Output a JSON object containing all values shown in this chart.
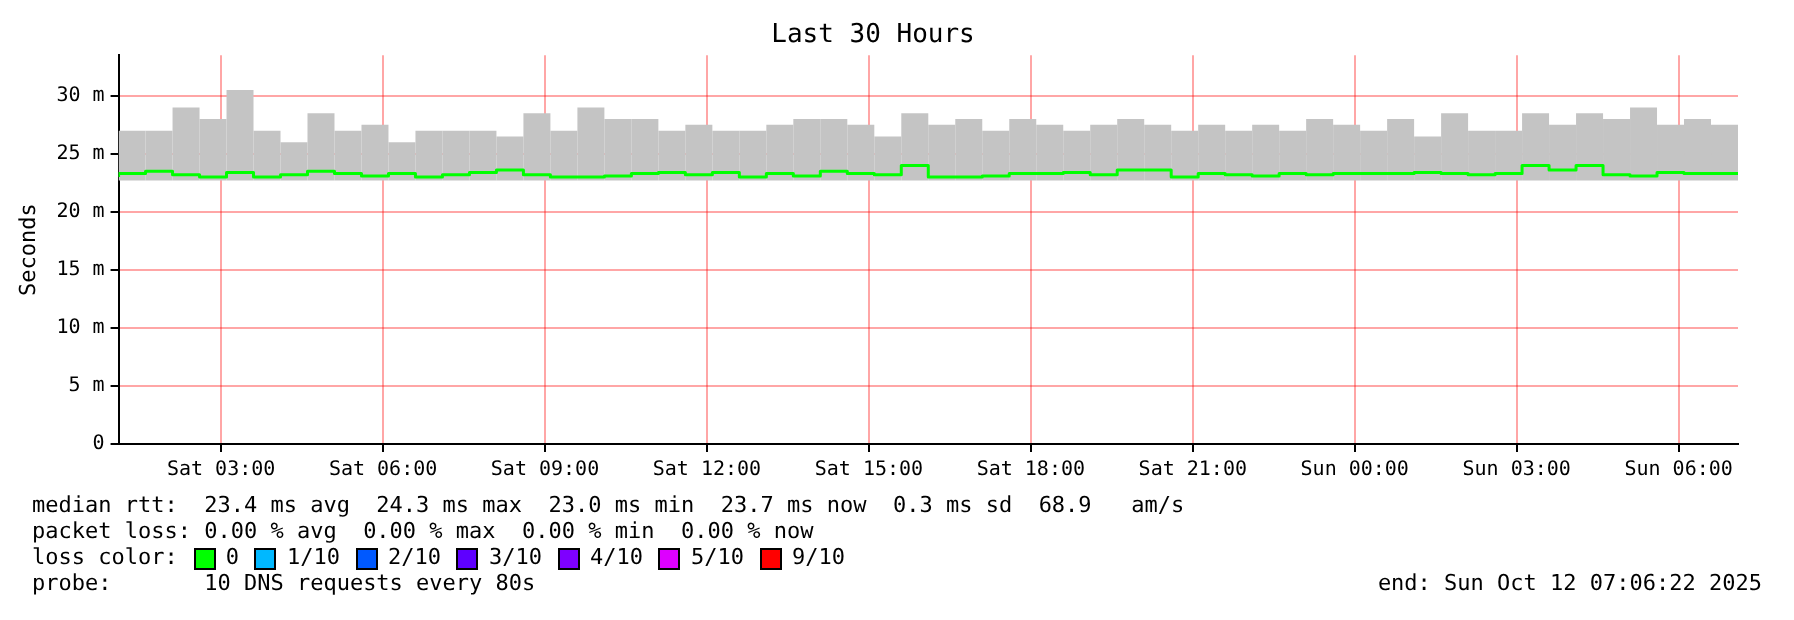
{
  "chart_data": {
    "type": "step",
    "title": "Last 30 Hours",
    "ylabel": "Seconds",
    "legend_title": "loss color:",
    "legend": "bottom",
    "grid": true,
    "marker": "none",
    "xlim": [
      "2025-10-11T01:06",
      "2025-10-12T07:06"
    ],
    "xticks": [
      {
        "value": "2025-10-11T03:00",
        "label": "Sat 03:00"
      },
      {
        "value": "2025-10-11T06:00",
        "label": "Sat 06:00"
      },
      {
        "value": "2025-10-11T09:00",
        "label": "Sat 09:00"
      },
      {
        "value": "2025-10-11T12:00",
        "label": "Sat 12:00"
      },
      {
        "value": "2025-10-11T15:00",
        "label": "Sat 15:00"
      },
      {
        "value": "2025-10-11T18:00",
        "label": "Sat 18:00"
      },
      {
        "value": "2025-10-11T21:00",
        "label": "Sat 21:00"
      },
      {
        "value": "2025-10-12T00:00",
        "label": "Sun 00:00"
      },
      {
        "value": "2025-10-12T03:00",
        "label": "Sun 03:00"
      },
      {
        "value": "2025-10-12T06:00",
        "label": "Sun 06:00"
      }
    ],
    "ylim": [
      0,
      33.5
    ],
    "yticks": [
      0,
      {
        "value": 5,
        "label": "5 m"
      },
      {
        "value": 10,
        "label": "10 m"
      },
      {
        "value": 15,
        "label": "15 m"
      },
      {
        "value": 20,
        "label": "20 m"
      },
      {
        "value": 25,
        "label": "25 m"
      },
      {
        "value": 30,
        "label": "30 m"
      }
    ],
    "x": [
      "2025-10-11T01:06",
      "2025-10-11T01:36",
      "2025-10-11T02:06",
      "2025-10-11T02:36",
      "2025-10-11T03:06",
      "2025-10-11T03:36",
      "2025-10-11T04:06",
      "2025-10-11T04:36",
      "2025-10-11T05:06",
      "2025-10-11T05:36",
      "2025-10-11T06:06",
      "2025-10-11T06:36",
      "2025-10-11T07:06",
      "2025-10-11T07:36",
      "2025-10-11T08:06",
      "2025-10-11T08:36",
      "2025-10-11T09:06",
      "2025-10-11T09:36",
      "2025-10-11T10:06",
      "2025-10-11T10:36",
      "2025-10-11T11:06",
      "2025-10-11T11:36",
      "2025-10-11T12:06",
      "2025-10-11T12:36",
      "2025-10-11T13:06",
      "2025-10-11T13:36",
      "2025-10-11T14:06",
      "2025-10-11T14:36",
      "2025-10-11T15:06",
      "2025-10-11T15:36",
      "2025-10-11T16:06",
      "2025-10-11T16:36",
      "2025-10-11T17:06",
      "2025-10-11T17:36",
      "2025-10-11T18:06",
      "2025-10-11T18:36",
      "2025-10-11T19:06",
      "2025-10-11T19:36",
      "2025-10-11T20:06",
      "2025-10-11T20:36",
      "2025-10-11T21:06",
      "2025-10-11T21:36",
      "2025-10-11T22:06",
      "2025-10-11T22:36",
      "2025-10-11T23:06",
      "2025-10-11T23:36",
      "2025-10-12T00:06",
      "2025-10-12T00:36",
      "2025-10-12T01:06",
      "2025-10-12T01:36",
      "2025-10-12T02:06",
      "2025-10-12T02:36",
      "2025-10-12T03:06",
      "2025-10-12T03:36",
      "2025-10-12T04:06",
      "2025-10-12T04:36",
      "2025-10-12T05:06",
      "2025-10-12T05:36",
      "2025-10-12T06:06",
      "2025-10-12T06:36",
      "2025-10-12T07:06"
    ],
    "series": [
      {
        "name": "0",
        "color": "#00ff00",
        "values": [
          23.0,
          23.3,
          23.5,
          23.2,
          23.0,
          23.4,
          23.0,
          23.2,
          23.5,
          23.3,
          23.1,
          23.3,
          23.0,
          23.2,
          23.4,
          23.6,
          23.2,
          23.0,
          23.0,
          23.1,
          23.3,
          23.4,
          23.2,
          23.4,
          23.0,
          23.3,
          23.1,
          23.5,
          23.3,
          23.2,
          24.0,
          23.0,
          23.0,
          23.1,
          23.3,
          23.3,
          23.4,
          23.2,
          23.6,
          23.6,
          23.0,
          23.3,
          23.2,
          23.1,
          23.3,
          23.2,
          23.3,
          23.3,
          23.3,
          23.4,
          23.3,
          23.2,
          23.3,
          24.0,
          23.6,
          24.0,
          23.2,
          23.1,
          23.4,
          23.3,
          23.3
        ],
        "lower": [
          22.7,
          22.7,
          22.7,
          22.7,
          22.7,
          22.7,
          22.7,
          22.7,
          22.7,
          22.7,
          22.7,
          22.7,
          22.7,
          22.7,
          22.7,
          22.7,
          22.7,
          22.7,
          22.7,
          22.7,
          22.7,
          22.7,
          22.7,
          22.7,
          22.7,
          22.7,
          22.7,
          22.7,
          22.7,
          22.7,
          22.7,
          22.7,
          22.7,
          22.7,
          22.7,
          22.7,
          22.7,
          22.7,
          22.7,
          22.7,
          22.7,
          22.7,
          22.7,
          22.7,
          22.7,
          22.7,
          22.7,
          22.7,
          22.7,
          22.7,
          22.7,
          22.7,
          22.7,
          22.7,
          22.7,
          22.7,
          22.7,
          22.7,
          22.7,
          22.7,
          22.7
        ],
        "upper": [
          27.0,
          27.0,
          29.0,
          28.0,
          30.5,
          27.0,
          26.0,
          28.5,
          27.0,
          27.5,
          26.0,
          27.0,
          27.0,
          27.0,
          26.5,
          28.5,
          27.0,
          29.0,
          28.0,
          28.0,
          27.0,
          27.5,
          27.0,
          27.0,
          27.5,
          28.0,
          28.0,
          27.5,
          26.5,
          28.5,
          27.5,
          28.0,
          27.0,
          28.0,
          27.5,
          27.0,
          27.5,
          28.0,
          27.5,
          27.0,
          27.5,
          27.0,
          27.5,
          27.0,
          28.0,
          27.5,
          27.0,
          28.0,
          26.5,
          28.5,
          27.0,
          27.0,
          28.5,
          27.5,
          28.5,
          28.0,
          29.0,
          27.5,
          28.0,
          27.5,
          27.5
        ]
      },
      {
        "name": "1/10",
        "color": "#00b8ff",
        "values": [
          null,
          null,
          null,
          null,
          null,
          null,
          null,
          null,
          null,
          null,
          null,
          null,
          null,
          null,
          null,
          null,
          null,
          null,
          null,
          null,
          null,
          null,
          null,
          null,
          null,
          null,
          null,
          null,
          null,
          null,
          null,
          null,
          null,
          null,
          null,
          null,
          null,
          null,
          null,
          null,
          null,
          null,
          null,
          null,
          null,
          null,
          null,
          null,
          null,
          null,
          null,
          null,
          null,
          null,
          null,
          null,
          null,
          null,
          null,
          null,
          null
        ]
      },
      {
        "name": "2/10",
        "color": "#0059ff",
        "values": [
          null,
          null,
          null,
          null,
          null,
          null,
          null,
          null,
          null,
          null,
          null,
          null,
          null,
          null,
          null,
          null,
          null,
          null,
          null,
          null,
          null,
          null,
          null,
          null,
          null,
          null,
          null,
          null,
          null,
          null,
          null,
          null,
          null,
          null,
          null,
          null,
          null,
          null,
          null,
          null,
          null,
          null,
          null,
          null,
          null,
          null,
          null,
          null,
          null,
          null,
          null,
          null,
          null,
          null,
          null,
          null,
          null,
          null,
          null,
          null,
          null
        ]
      },
      {
        "name": "3/10",
        "color": "#5e00ff",
        "values": [
          null,
          null,
          null,
          null,
          null,
          null,
          null,
          null,
          null,
          null,
          null,
          null,
          null,
          null,
          null,
          null,
          null,
          null,
          null,
          null,
          null,
          null,
          null,
          null,
          null,
          null,
          null,
          null,
          null,
          null,
          null,
          null,
          null,
          null,
          null,
          null,
          null,
          null,
          null,
          null,
          null,
          null,
          null,
          null,
          null,
          null,
          null,
          null,
          null,
          null,
          null,
          null,
          null,
          null,
          null,
          null,
          null,
          null,
          null,
          null,
          null
        ]
      },
      {
        "name": "4/10",
        "color": "#7e00ff",
        "values": [
          null,
          null,
          null,
          null,
          null,
          null,
          null,
          null,
          null,
          null,
          null,
          null,
          null,
          null,
          null,
          null,
          null,
          null,
          null,
          null,
          null,
          null,
          null,
          null,
          null,
          null,
          null,
          null,
          null,
          null,
          null,
          null,
          null,
          null,
          null,
          null,
          null,
          null,
          null,
          null,
          null,
          null,
          null,
          null,
          null,
          null,
          null,
          null,
          null,
          null,
          null,
          null,
          null,
          null,
          null,
          null,
          null,
          null,
          null,
          null,
          null
        ]
      },
      {
        "name": "5/10",
        "color": "#dd00ff",
        "values": [
          null,
          null,
          null,
          null,
          null,
          null,
          null,
          null,
          null,
          null,
          null,
          null,
          null,
          null,
          null,
          null,
          null,
          null,
          null,
          null,
          null,
          null,
          null,
          null,
          null,
          null,
          null,
          null,
          null,
          null,
          null,
          null,
          null,
          null,
          null,
          null,
          null,
          null,
          null,
          null,
          null,
          null,
          null,
          null,
          null,
          null,
          null,
          null,
          null,
          null,
          null,
          null,
          null,
          null,
          null,
          null,
          null,
          null,
          null,
          null,
          null
        ]
      },
      {
        "name": "9/10",
        "color": "#ff0000",
        "values": [
          null,
          null,
          null,
          null,
          null,
          null,
          null,
          null,
          null,
          null,
          null,
          null,
          null,
          null,
          null,
          null,
          null,
          null,
          null,
          null,
          null,
          null,
          null,
          null,
          null,
          null,
          null,
          null,
          null,
          null,
          null,
          null,
          null,
          null,
          null,
          null,
          null,
          null,
          null,
          null,
          null,
          null,
          null,
          null,
          null,
          null,
          null,
          null,
          null,
          null,
          null,
          null,
          null,
          null,
          null,
          null,
          null,
          null,
          null,
          null,
          null
        ]
      }
    ],
    "annotations": [
      "median rtt:  23.4 ms avg  24.3 ms max  23.0 ms min  23.7 ms now  0.3 ms sd  68.9   am/s",
      "packet loss: 0.00 % avg  0.00 % max  0.00 % min  0.00 % now",
      "probe:       10 DNS requests every 80s",
      "end: Sun Oct 12 07:06:22 2025"
    ]
  }
}
